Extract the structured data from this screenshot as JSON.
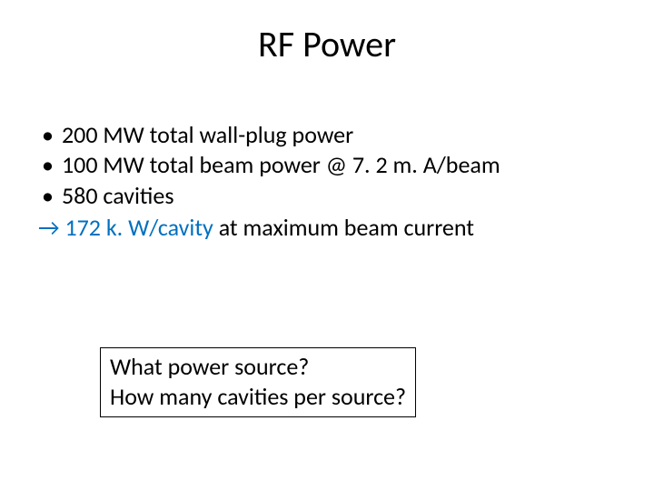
{
  "colors": {
    "text": "#000000",
    "accent_blue": "#0070c0",
    "background": "#ffffff",
    "box_border": "#000000"
  },
  "typography": {
    "title_fontsize_pt": 40,
    "body_fontsize_pt": 26,
    "font_family": "Calibri"
  },
  "title": "RF Power",
  "bullets": [
    "200 MW total wall-plug power",
    "100 MW total beam power @ 7. 2 m. A/beam",
    "580 cavities"
  ],
  "result": {
    "arrow": "→",
    "highlight": "172 k. W/cavity",
    "rest": " at maximum beam current"
  },
  "question": {
    "line1": "What power source?",
    "line2": "How many cavities per source?"
  }
}
